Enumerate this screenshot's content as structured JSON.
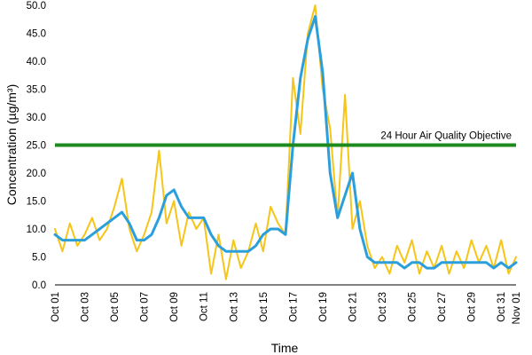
{
  "chart_data": {
    "type": "line",
    "xlabel": "Time",
    "ylabel": "Concentration (µg/m³)",
    "ylim": [
      0,
      50
    ],
    "yticks": [
      "0.0",
      "5.0",
      "10.0",
      "15.0",
      "20.0",
      "25.0",
      "30.0",
      "35.0",
      "40.0",
      "45.0",
      "50.0"
    ],
    "xticks": [
      "Oct 01",
      "Oct 03",
      "Oct 05",
      "Oct 07",
      "Oct 09",
      "Oct 11",
      "Oct 13",
      "Oct 15",
      "Oct 17",
      "Oct 19",
      "Oct 21",
      "Oct 23",
      "Oct 25",
      "Oct 27",
      "Oct 29",
      "Oct 31",
      "Nov 01"
    ],
    "xtick_days": [
      1,
      3,
      5,
      7,
      9,
      11,
      13,
      15,
      17,
      19,
      21,
      23,
      25,
      27,
      29,
      31,
      32
    ],
    "xlim_days": [
      1,
      32
    ],
    "grid": false,
    "colors": {
      "hourly": "#f5c518",
      "rolling": "#2b9fdc",
      "objective": "#1e8a1e"
    },
    "reference_line": {
      "value": 25,
      "label": "24 Hour Air Quality Objective"
    },
    "series": [
      {
        "style": "hourly",
        "x_days": [
          1.0,
          1.5,
          2.0,
          2.5,
          3.0,
          3.5,
          4.0,
          4.5,
          5.0,
          5.5,
          6.0,
          6.5,
          7.0,
          7.5,
          8.0,
          8.5,
          9.0,
          9.5,
          10.0,
          10.5,
          11.0,
          11.5,
          12.0,
          12.5,
          13.0,
          13.5,
          14.0,
          14.5,
          15.0,
          15.5,
          16.0,
          16.5,
          17.0,
          17.5,
          18.0,
          18.5,
          19.0,
          19.5,
          20.0,
          20.5,
          21.0,
          21.5,
          22.0,
          22.5,
          23.0,
          23.5,
          24.0,
          24.5,
          25.0,
          25.5,
          26.0,
          26.5,
          27.0,
          27.5,
          28.0,
          28.5,
          29.0,
          29.5,
          30.0,
          30.5,
          31.0,
          31.5,
          32.0
        ],
        "values": [
          10,
          6,
          11,
          7,
          9,
          12,
          8,
          10,
          14,
          19,
          10,
          6,
          9,
          13,
          24,
          11,
          15,
          7,
          13,
          10,
          12,
          2,
          9,
          1,
          8,
          3,
          6,
          11,
          6,
          14,
          11,
          9,
          37,
          27,
          45,
          50,
          35,
          28,
          12,
          34,
          10,
          15,
          7,
          3,
          5,
          2,
          7,
          4,
          8,
          2,
          6,
          3,
          7,
          2,
          6,
          3,
          8,
          4,
          7,
          3,
          8,
          2,
          5
        ]
      },
      {
        "style": "rolling",
        "x_days": [
          1.0,
          1.5,
          2.0,
          2.5,
          3.0,
          3.5,
          4.0,
          4.5,
          5.0,
          5.5,
          6.0,
          6.5,
          7.0,
          7.5,
          8.0,
          8.5,
          9.0,
          9.5,
          10.0,
          10.5,
          11.0,
          11.5,
          12.0,
          12.5,
          13.0,
          13.5,
          14.0,
          14.5,
          15.0,
          15.5,
          16.0,
          16.5,
          17.0,
          17.5,
          18.0,
          18.5,
          19.0,
          19.5,
          20.0,
          20.5,
          21.0,
          21.5,
          22.0,
          22.5,
          23.0,
          23.5,
          24.0,
          24.5,
          25.0,
          25.5,
          26.0,
          26.5,
          27.0,
          27.5,
          28.0,
          28.5,
          29.0,
          29.5,
          30.0,
          30.5,
          31.0,
          31.5,
          32.0
        ],
        "values": [
          9,
          8,
          8,
          8,
          8,
          9,
          10,
          11,
          12,
          13,
          11,
          8,
          8,
          9,
          12,
          16,
          17,
          14,
          12,
          12,
          12,
          9,
          7,
          6,
          6,
          6,
          6,
          7,
          9,
          10,
          10,
          9,
          25,
          37,
          44,
          48,
          38,
          20,
          12,
          16,
          20,
          10,
          5,
          4,
          4,
          4,
          4,
          3,
          4,
          4,
          3,
          3,
          4,
          4,
          4,
          4,
          4,
          4,
          4,
          3,
          4,
          3,
          4
        ]
      }
    ]
  }
}
